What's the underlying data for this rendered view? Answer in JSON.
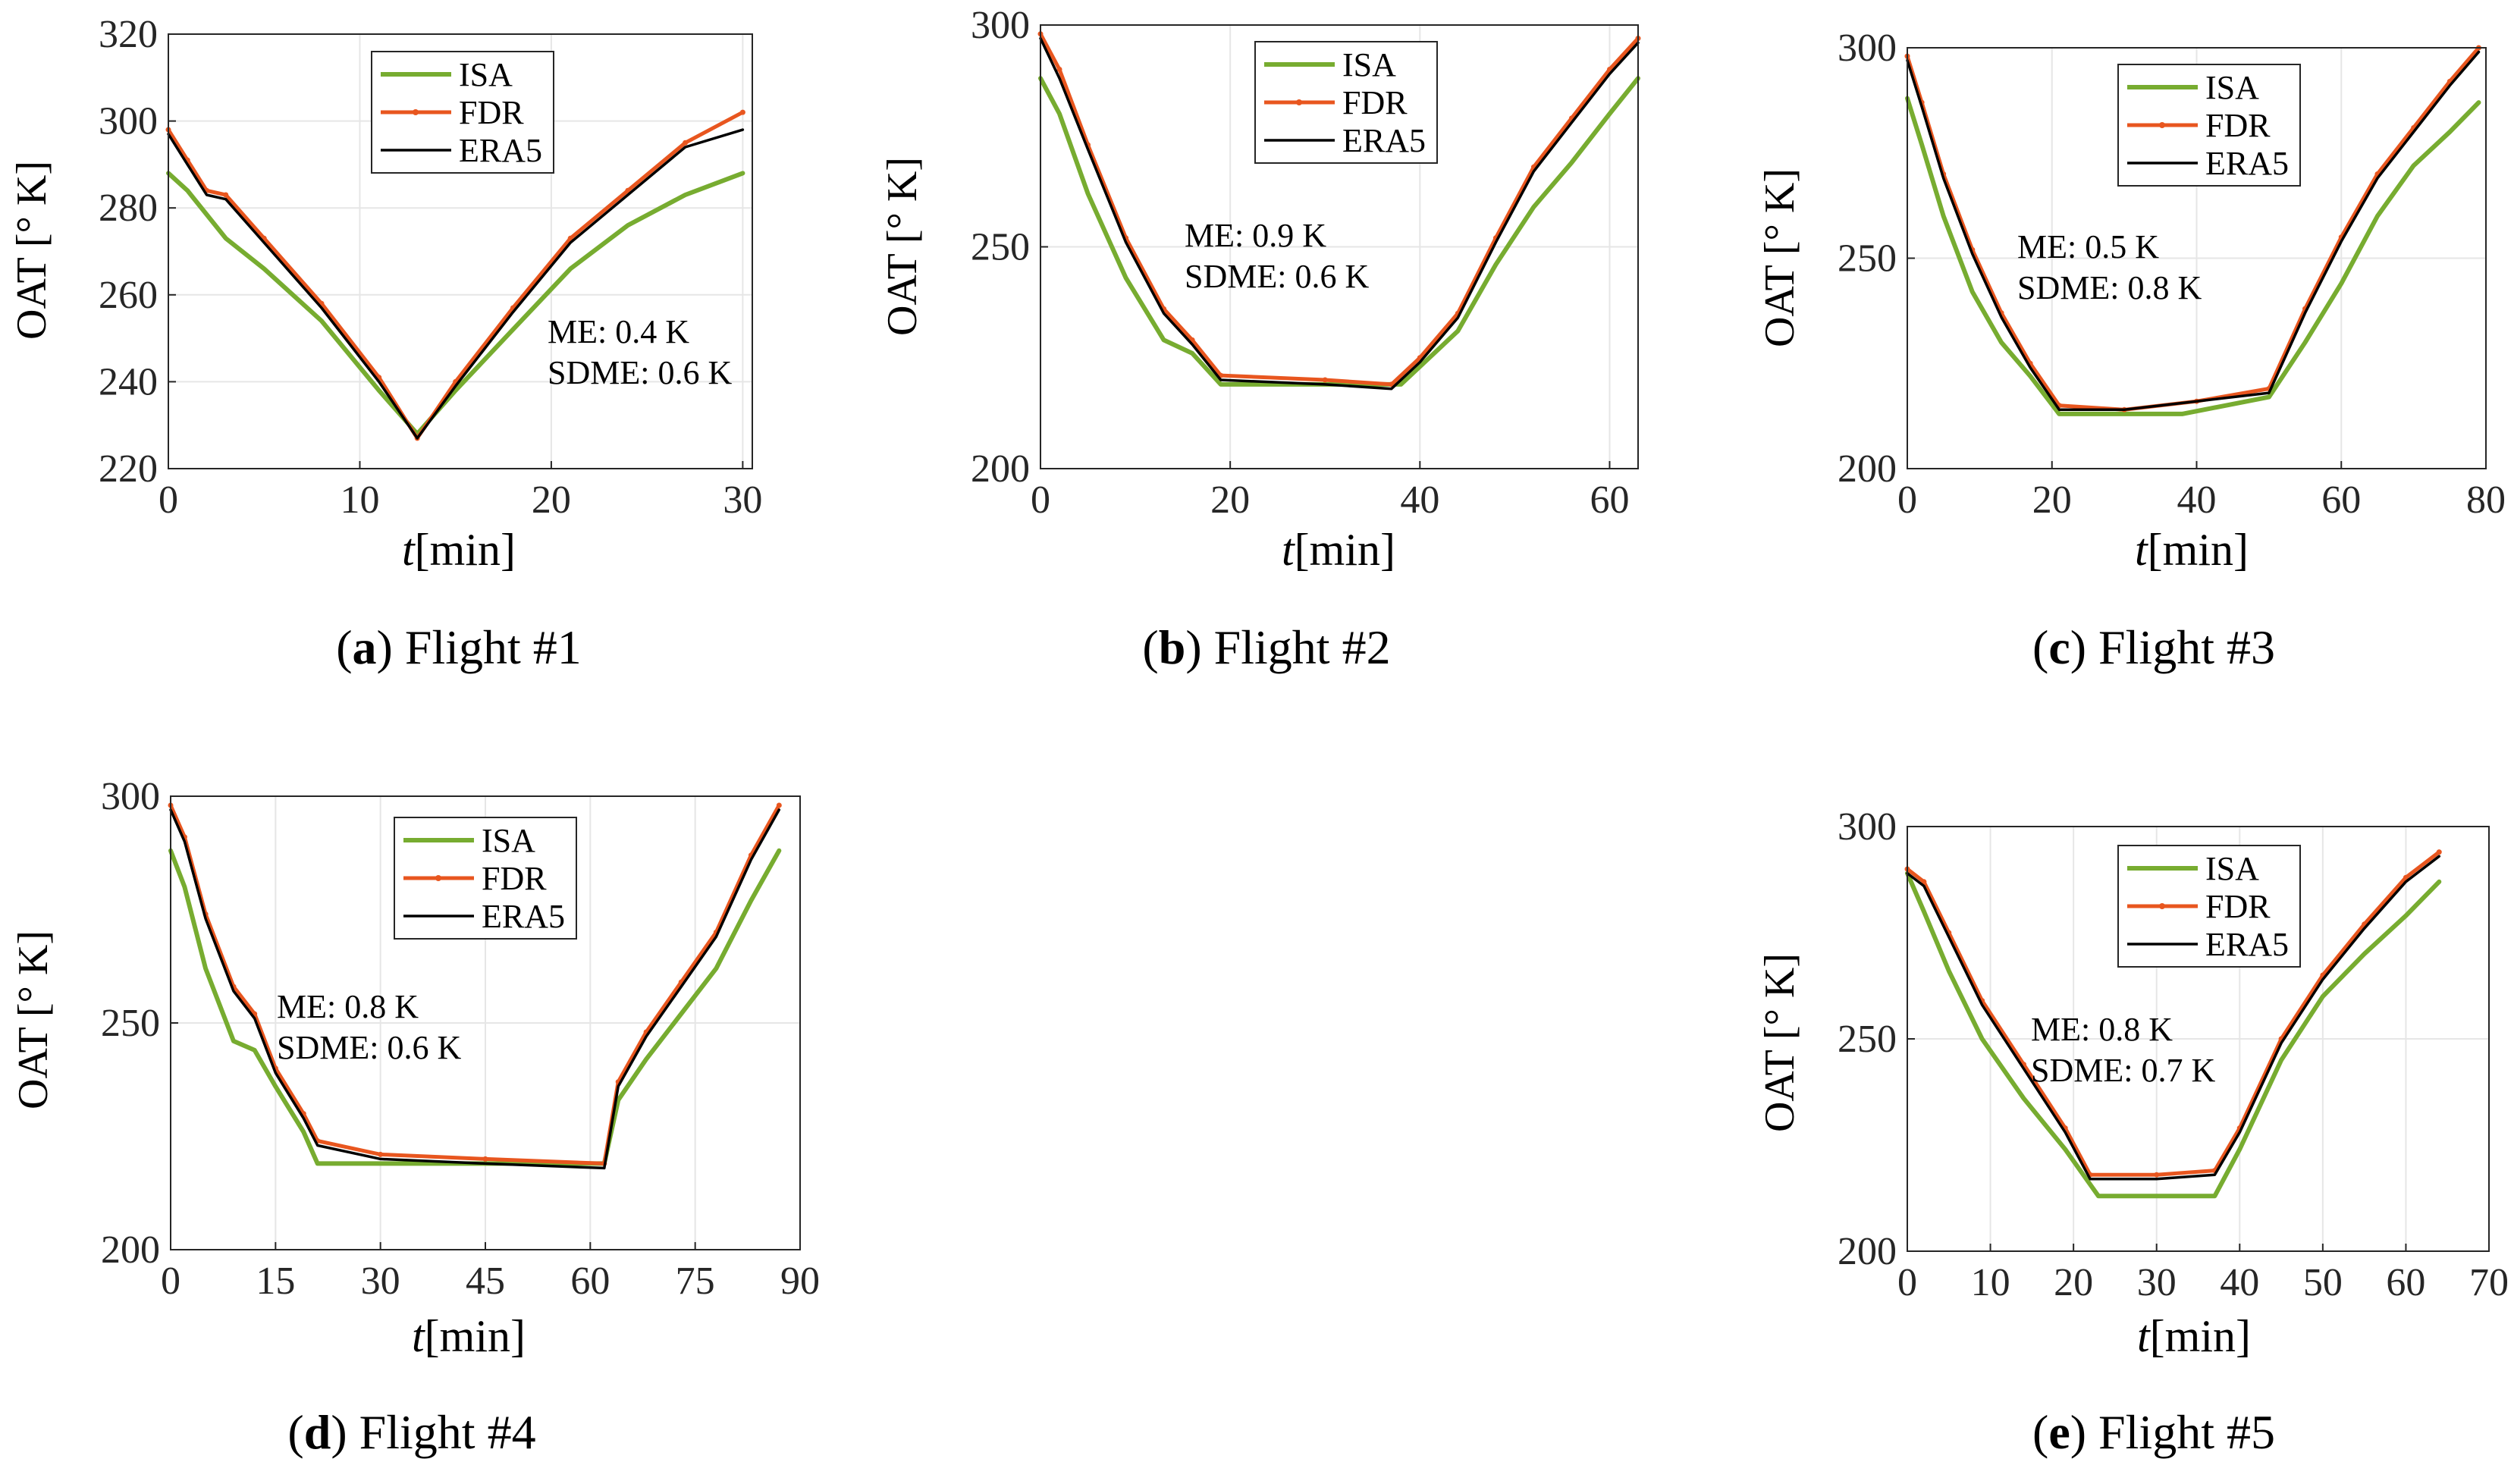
{
  "colors": {
    "isa": "#77AC30",
    "fdr": "#E8561F",
    "era5": "#000000",
    "grid": "#E6E6E6",
    "axis": "#262626"
  },
  "chart_data": [
    {
      "type": "line",
      "panel": "a",
      "caption_label": "a",
      "caption_text": "Flight #1",
      "xlabel_var": "t",
      "xlabel_unit": "[min]",
      "ylabel": "OAT [° K]",
      "xlim": [
        0,
        30.5
      ],
      "ylim": [
        220,
        320
      ],
      "xticks": [
        0,
        10,
        20,
        30
      ],
      "yticks": [
        220,
        240,
        260,
        280,
        300,
        320
      ],
      "legend_position": "top-center",
      "annotation": [
        "ME: 0.4 K",
        "SDME: 0.6 K"
      ],
      "series": [
        {
          "name": "ISA",
          "x": [
            0,
            1,
            3,
            5,
            8,
            11,
            13,
            15,
            18,
            21,
            24,
            27,
            30
          ],
          "y": [
            288,
            284,
            273,
            266,
            254,
            238,
            228,
            238,
            252,
            266,
            276,
            283,
            288
          ]
        },
        {
          "name": "FDR",
          "x": [
            0,
            1,
            2,
            3,
            5,
            8,
            11,
            13,
            15,
            18,
            21,
            24,
            27,
            30
          ],
          "y": [
            298,
            291,
            284,
            283,
            273,
            258,
            241,
            227,
            240,
            257,
            273,
            284,
            295,
            302
          ]
        },
        {
          "name": "ERA5",
          "x": [
            0,
            1,
            2,
            3,
            5,
            8,
            11,
            13,
            15,
            18,
            21,
            24,
            27,
            30
          ],
          "y": [
            297,
            290,
            283,
            282,
            272,
            257,
            240,
            227,
            239,
            256,
            272,
            283,
            294,
            298
          ]
        }
      ]
    },
    {
      "type": "line",
      "panel": "b",
      "caption_label": "b",
      "caption_text": "Flight #2",
      "xlabel_var": "t",
      "xlabel_unit": "[min]",
      "ylabel": "OAT [° K]",
      "xlim": [
        0,
        63
      ],
      "ylim": [
        200,
        300
      ],
      "xticks": [
        0,
        20,
        40,
        60
      ],
      "yticks": [
        200,
        250,
        300
      ],
      "legend_position": "top-center",
      "annotation": [
        "ME: 0.9 K",
        "SDME: 0.6 K"
      ],
      "series": [
        {
          "name": "ISA",
          "x": [
            0,
            2,
            5,
            9,
            13,
            16,
            19,
            38,
            40,
            44,
            48,
            52,
            56,
            60,
            63
          ],
          "y": [
            288,
            280,
            262,
            243,
            229,
            226,
            219,
            219,
            223,
            231,
            246,
            259,
            269,
            280,
            288
          ]
        },
        {
          "name": "FDR",
          "x": [
            0,
            2,
            5,
            9,
            13,
            16,
            19,
            30,
            37,
            40,
            44,
            48,
            52,
            56,
            60,
            63
          ],
          "y": [
            298,
            290,
            273,
            252,
            236,
            229,
            221,
            220,
            219,
            225,
            235,
            252,
            268,
            279,
            290,
            297
          ]
        },
        {
          "name": "ERA5",
          "x": [
            0,
            2,
            5,
            9,
            13,
            16,
            19,
            30,
            37,
            40,
            44,
            48,
            52,
            56,
            60,
            63
          ],
          "y": [
            297,
            288,
            272,
            251,
            235,
            228,
            220,
            219,
            218,
            224,
            234,
            251,
            267,
            278,
            289,
            296
          ]
        }
      ]
    },
    {
      "type": "line",
      "panel": "c",
      "caption_label": "c",
      "caption_text": "Flight #3",
      "xlabel_var": "t",
      "xlabel_unit": "[min]",
      "ylabel": "OAT [° K]",
      "xlim": [
        0,
        80
      ],
      "ylim": [
        200,
        300
      ],
      "xticks": [
        0,
        20,
        40,
        60,
        80
      ],
      "yticks": [
        200,
        250,
        300
      ],
      "legend_position": "top-right",
      "annotation": [
        "ME: 0.5 K",
        "SDME: 0.8 K"
      ],
      "series": [
        {
          "name": "ISA",
          "x": [
            0,
            2,
            5,
            9,
            13,
            17,
            21,
            38,
            50,
            55,
            60,
            65,
            70,
            75,
            79
          ],
          "y": [
            288,
            277,
            260,
            242,
            230,
            222,
            213,
            213,
            217,
            230,
            244,
            260,
            272,
            280,
            287
          ]
        },
        {
          "name": "FDR",
          "x": [
            0,
            2,
            5,
            9,
            13,
            17,
            21,
            30,
            40,
            50,
            55,
            60,
            65,
            70,
            75,
            79
          ],
          "y": [
            298,
            287,
            270,
            252,
            237,
            225,
            215,
            214,
            216,
            219,
            238,
            255,
            270,
            281,
            292,
            300
          ]
        },
        {
          "name": "ERA5",
          "x": [
            0,
            2,
            5,
            9,
            13,
            17,
            21,
            30,
            40,
            50,
            55,
            60,
            65,
            70,
            75,
            79
          ],
          "y": [
            297,
            286,
            269,
            251,
            236,
            224,
            214,
            214,
            216,
            218,
            237,
            254,
            269,
            280,
            291,
            299
          ]
        }
      ]
    },
    {
      "type": "line",
      "panel": "d",
      "caption_label": "d",
      "caption_text": "Flight #4",
      "xlabel_var": "t",
      "xlabel_unit": "[min]",
      "ylabel": "OAT [° K]",
      "xlim": [
        0,
        90
      ],
      "ylim": [
        200,
        300
      ],
      "xticks": [
        0,
        15,
        30,
        45,
        60,
        75,
        90
      ],
      "yticks": [
        200,
        250,
        300
      ],
      "legend_position": "top-right",
      "annotation": [
        "ME: 0.8 K",
        "SDME: 0.6 K"
      ],
      "series": [
        {
          "name": "ISA",
          "x": [
            0,
            2,
            5,
            9,
            12,
            15,
            19,
            21,
            62,
            64,
            68,
            73,
            78,
            83,
            87
          ],
          "y": [
            288,
            280,
            262,
            246,
            244,
            236,
            226,
            219,
            219,
            233,
            242,
            252,
            262,
            277,
            288
          ]
        },
        {
          "name": "FDR",
          "x": [
            0,
            2,
            5,
            9,
            12,
            15,
            19,
            21,
            30,
            45,
            62,
            64,
            68,
            73,
            78,
            83,
            87
          ],
          "y": [
            298,
            291,
            274,
            258,
            252,
            240,
            230,
            224,
            221,
            220,
            219,
            237,
            248,
            259,
            270,
            287,
            298
          ]
        },
        {
          "name": "ERA5",
          "x": [
            0,
            2,
            5,
            9,
            12,
            15,
            19,
            21,
            30,
            45,
            62,
            64,
            68,
            73,
            78,
            83,
            87
          ],
          "y": [
            297,
            290,
            273,
            257,
            251,
            239,
            229,
            223,
            220,
            219,
            218,
            236,
            247,
            258,
            269,
            286,
            297
          ]
        }
      ]
    },
    {
      "type": "line",
      "panel": "e",
      "caption_label": "e",
      "caption_text": "Flight #5",
      "xlabel_var": "t",
      "xlabel_unit": "[min]",
      "ylabel": "OAT [° K]",
      "xlim": [
        0,
        70
      ],
      "ylim": [
        200,
        300
      ],
      "xticks": [
        0,
        10,
        20,
        30,
        40,
        50,
        60,
        70
      ],
      "yticks": [
        200,
        250,
        300
      ],
      "legend_position": "top-right",
      "annotation": [
        "ME: 0.8 K",
        "SDME: 0.7 K"
      ],
      "series": [
        {
          "name": "ISA",
          "x": [
            0,
            2,
            5,
            9,
            14,
            19,
            23,
            37,
            40,
            45,
            50,
            55,
            60,
            64
          ],
          "y": [
            289,
            280,
            266,
            250,
            236,
            224,
            213,
            213,
            224,
            245,
            260,
            270,
            279,
            287
          ]
        },
        {
          "name": "FDR",
          "x": [
            0,
            2,
            5,
            9,
            14,
            19,
            22,
            30,
            37,
            40,
            45,
            50,
            55,
            60,
            64
          ],
          "y": [
            290,
            287,
            275,
            259,
            244,
            229,
            218,
            218,
            219,
            229,
            250,
            265,
            277,
            288,
            294
          ]
        },
        {
          "name": "ERA5",
          "x": [
            0,
            2,
            5,
            9,
            14,
            19,
            22,
            30,
            37,
            40,
            45,
            50,
            55,
            60,
            64
          ],
          "y": [
            289,
            286,
            274,
            258,
            243,
            228,
            217,
            217,
            218,
            228,
            249,
            264,
            276,
            287,
            293
          ]
        }
      ]
    }
  ]
}
